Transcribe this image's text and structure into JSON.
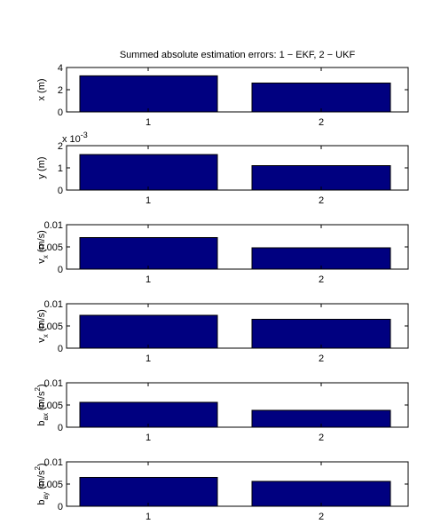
{
  "chart_data": [
    {
      "type": "bar",
      "title": "Summed absolute estimation errors: 1 − EKF, 2 − UKF",
      "categories": [
        "1",
        "2"
      ],
      "values": [
        3.25,
        2.6
      ],
      "ylabel": {
        "base": "x (m)"
      },
      "ylim": [
        0,
        4
      ],
      "yticks": [
        "0",
        "2",
        "4"
      ],
      "bar_color": "#000080"
    },
    {
      "type": "bar",
      "categories": [
        "1",
        "2"
      ],
      "values": [
        0.0016,
        0.0011
      ],
      "ylabel": {
        "base": "y (m)"
      },
      "ylim": [
        0,
        0.002
      ],
      "yticks": [
        "0",
        "1",
        "2"
      ],
      "multiplier": {
        "base": "x 10",
        "exp": "-3"
      },
      "bar_color": "#000080"
    },
    {
      "type": "bar",
      "categories": [
        "1",
        "2"
      ],
      "values": [
        0.0071,
        0.0048
      ],
      "ylabel": {
        "base": "v",
        "sub": "x",
        "unit": "(m/s)"
      },
      "ylim": [
        0,
        0.01
      ],
      "yticks": [
        "0",
        "0.005",
        "0.01"
      ],
      "bar_color": "#000080"
    },
    {
      "type": "bar",
      "categories": [
        "1",
        "2"
      ],
      "values": [
        0.0074,
        0.0065
      ],
      "ylabel": {
        "base": "v",
        "sub": "x",
        "unit": "(m/s)"
      },
      "ylim": [
        0,
        0.01
      ],
      "yticks": [
        "0",
        "0.005",
        "0.01"
      ],
      "bar_color": "#000080"
    },
    {
      "type": "bar",
      "categories": [
        "1",
        "2"
      ],
      "values": [
        0.0056,
        0.0038
      ],
      "ylabel": {
        "base": "b",
        "sub": "ax",
        "unit": "(m/s",
        "sup": "2",
        "close": ")"
      },
      "ylim": [
        0,
        0.01
      ],
      "yticks": [
        "0",
        "0.005",
        "0.01"
      ],
      "bar_color": "#000080"
    },
    {
      "type": "bar",
      "categories": [
        "1",
        "2"
      ],
      "values": [
        0.0065,
        0.0056
      ],
      "ylabel": {
        "base": "b",
        "sub": "ay",
        "unit": "(m/s",
        "sup": "2",
        "close": ")"
      },
      "ylim": [
        0,
        0.01
      ],
      "yticks": [
        "0",
        "0.005",
        "0.01"
      ],
      "bar_color": "#000080"
    }
  ]
}
